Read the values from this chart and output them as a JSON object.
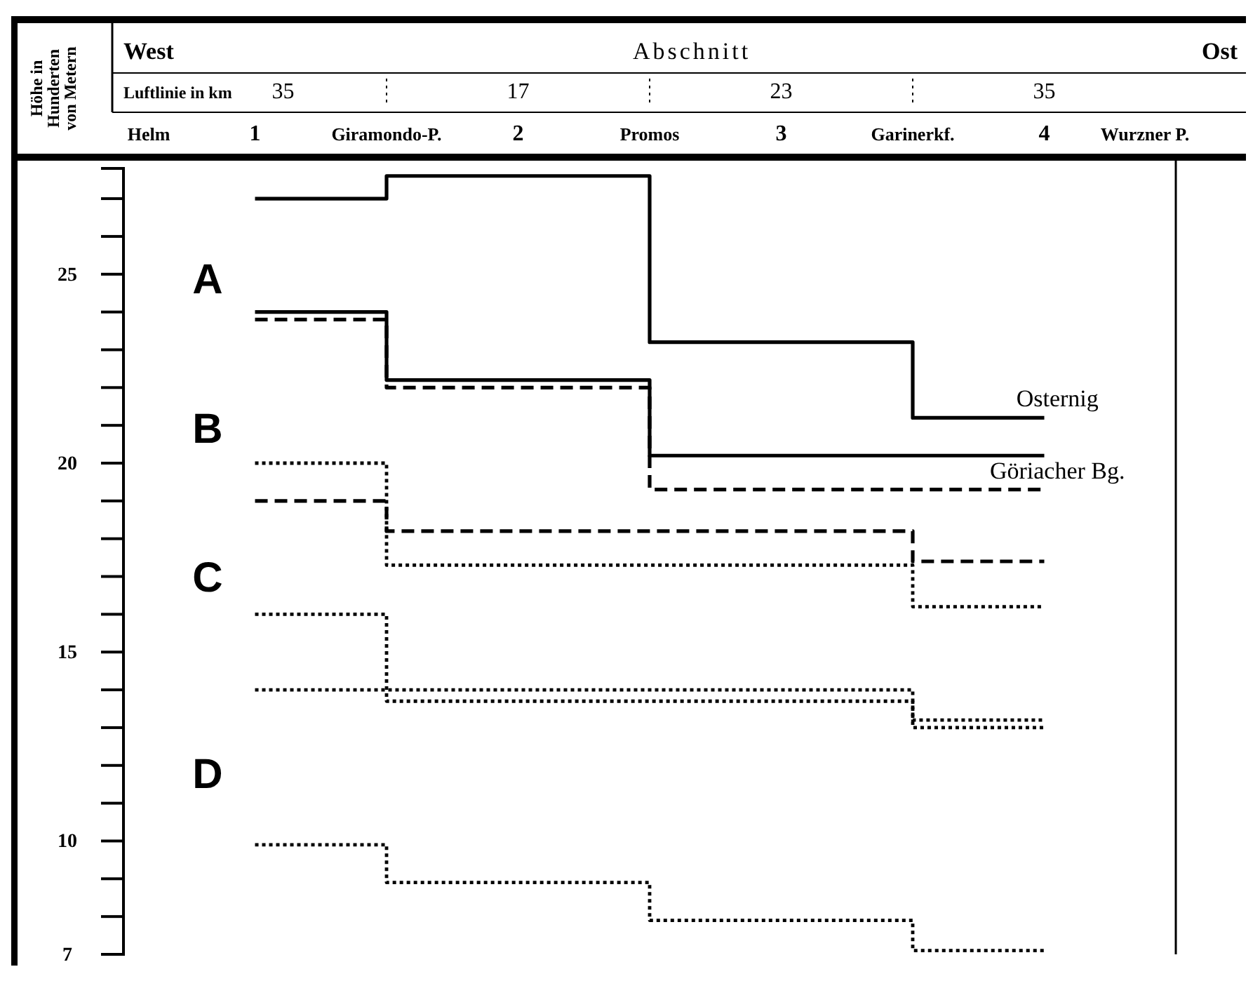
{
  "chart_data": {
    "type": "step",
    "ylabel": "Höhe in Hunderten von Metern",
    "categories": [
      "1",
      "2",
      "3",
      "4"
    ],
    "ylim": [
      7,
      27.8
    ],
    "yticks": [
      7,
      {
        "value": 8,
        "label": null
      },
      {
        "value": 9,
        "label": null
      },
      10,
      {
        "value": 11,
        "label": null
      },
      {
        "value": 12,
        "label": null
      },
      {
        "value": 13,
        "label": null
      },
      {
        "value": 14,
        "label": null
      },
      15,
      {
        "value": 16,
        "label": null
      },
      {
        "value": 17,
        "label": null
      },
      {
        "value": 18,
        "label": null
      },
      {
        "value": 19,
        "label": null
      },
      20,
      {
        "value": 21,
        "label": null
      },
      {
        "value": 22,
        "label": null
      },
      {
        "value": 23,
        "label": null
      },
      {
        "value": 24,
        "label": null
      },
      25,
      {
        "value": 26,
        "label": null
      },
      {
        "value": 27,
        "label": null
      }
    ],
    "series": [
      {
        "name": "Osternig",
        "color": "#000000",
        "line_style": "solid",
        "values": [
          27.0,
          27.6,
          23.2,
          21.2
        ]
      },
      {
        "color": "#000000",
        "line_style": "solid",
        "values": [
          24.0,
          22.2,
          20.2,
          20.2
        ]
      },
      {
        "name": "Göriacher Bg.",
        "color": "#000000",
        "line_style": "dashed",
        "values": [
          23.8,
          22.0,
          19.3,
          19.3
        ]
      },
      {
        "color": "#000000",
        "line_style": "dashed",
        "values": [
          19.0,
          18.2,
          18.2,
          17.4
        ]
      },
      {
        "color": "#000000",
        "line_style": "dotted",
        "values": [
          20.0,
          17.3,
          17.3,
          16.2
        ]
      },
      {
        "color": "#000000",
        "line_style": "dotted",
        "values": [
          14.0,
          14.0,
          14.0,
          13.2
        ]
      },
      {
        "color": "#000000",
        "line_style": "dotted",
        "values": [
          16.0,
          13.7,
          13.7,
          13.0
        ]
      },
      {
        "color": "#000000",
        "line_style": "dotted",
        "values": [
          9.9,
          8.9,
          7.9,
          7.1
        ]
      }
    ],
    "annotations": [
      "West",
      "Abschnitt",
      "Ost",
      "Luftlinie in km",
      "35",
      "17",
      "23",
      "35",
      "Helm",
      "Giramondo-P.",
      "Promos",
      "Garinerkf.",
      "Wurzner P.",
      "A",
      "B",
      "C",
      "D"
    ]
  }
}
